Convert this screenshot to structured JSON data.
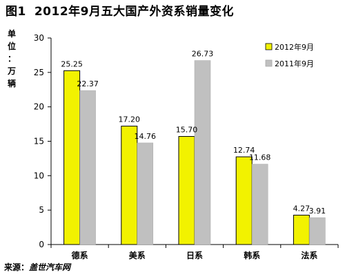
{
  "title": {
    "figure_no": "图1",
    "text": "2012年9月五大国产外资系销量变化"
  },
  "y_unit_label": [
    "单",
    "位",
    "：",
    "万",
    "辆"
  ],
  "source": {
    "label": "来源：",
    "value": "盖世汽车网"
  },
  "chart_data": {
    "type": "bar",
    "title": "2012年9月五大国产外资系销量变化",
    "ylabel": "单位：万辆",
    "xlabel": "",
    "categories": [
      "德系",
      "美系",
      "日系",
      "韩系",
      "法系"
    ],
    "series": [
      {
        "name": "2012年9月",
        "values": [
          25.25,
          17.2,
          15.7,
          12.74,
          4.27
        ],
        "labels": [
          "25.25",
          "17.20",
          "15.70",
          "12.74",
          "4.27"
        ],
        "color": "#f2f200"
      },
      {
        "name": "2011年9月",
        "values": [
          22.37,
          14.76,
          26.73,
          11.68,
          3.91
        ],
        "labels": [
          "22.37",
          "14.76",
          "26.73",
          "11.68",
          "3.91"
        ],
        "color": "#c0c0c0"
      }
    ],
    "ylim": [
      0,
      30
    ],
    "yticks": [
      0,
      5,
      10,
      15,
      20,
      25,
      30
    ],
    "grid": false,
    "legend": "top-right"
  }
}
